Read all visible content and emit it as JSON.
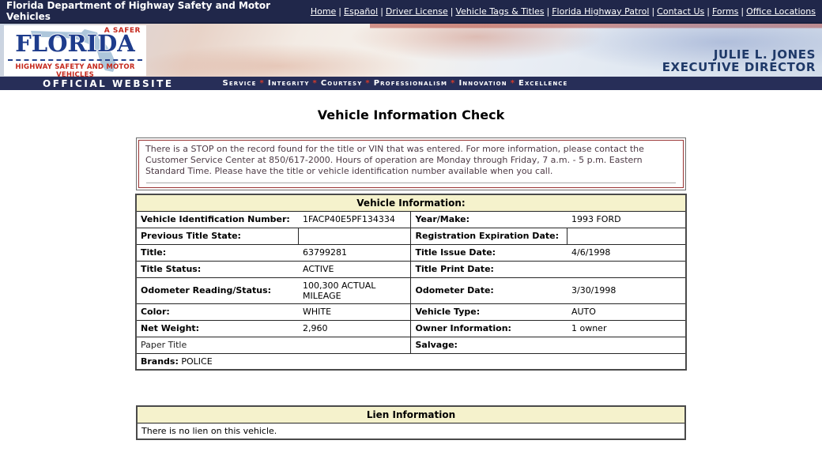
{
  "top_bar": {
    "title": "Florida Department of Highway Safety and Motor Vehicles",
    "links": [
      "Home",
      "Español",
      "Driver License",
      "Vehicle Tags & Titles",
      "Florida Highway Patrol",
      "Contact Us",
      "Forms",
      "Office Locations"
    ],
    "separator": "|"
  },
  "banner": {
    "logo": {
      "tagline": "A SAFER",
      "name": "FLORIDA",
      "subtitle": "HIGHWAY SAFETY AND MOTOR VEHICLES"
    },
    "director_name": "JULIE L. JONES",
    "director_title": "EXECUTIVE DIRECTOR",
    "official_website": "OFFICIAL WEBSITE",
    "motto_words": [
      "Service",
      "Integrity",
      "Courtesy",
      "Professionalism",
      "Innovation",
      "Excellence"
    ],
    "motto_separator": "*"
  },
  "page": {
    "title": "Vehicle Information Check"
  },
  "stop_notice": {
    "text": "There is a STOP on the record found for the title or VIN that was entered. For more information, please contact the Customer Service Center at 850/617-2000. Hours of operation are Monday through Friday, 7 a.m. - 5 p.m. Eastern Standard Time. Please have the title or vehicle identification number available when you call."
  },
  "vehicle_info": {
    "header": "Vehicle Information:",
    "rows": [
      {
        "ll": "Vehicle Identification Number:",
        "lv": "1FACP40E5PF134334",
        "rl": "Year/Make:",
        "rv": "1993 FORD"
      },
      {
        "ll": "Previous Title State:",
        "lv": "",
        "rl": "Registration Expiration Date:",
        "rv": ""
      },
      {
        "ll": "Title:",
        "lv": "63799281",
        "rl": "Title Issue Date:",
        "rv": "4/6/1998"
      },
      {
        "ll": "Title Status:",
        "lv": "ACTIVE",
        "rl": "Title Print Date:",
        "rv": ""
      },
      {
        "ll": "Odometer Reading/Status:",
        "lv": "100,300 ACTUAL MILEAGE",
        "rl": "Odometer Date:",
        "rv": "3/30/1998"
      },
      {
        "ll": "Color:",
        "lv": "WHITE",
        "rl": "Vehicle Type:",
        "rv": "AUTO"
      },
      {
        "ll": "Net Weight:",
        "lv": "2,960",
        "rl": "Owner Information:",
        "rv": "1 owner"
      }
    ],
    "paper_title": "Paper Title",
    "salvage_label": "Salvage:",
    "brands_label": "Brands:",
    "brands_value": "POLICE"
  },
  "lien_info": {
    "header": "Lien Information",
    "message": "There is no lien on this vehicle."
  },
  "colors": {
    "navy_bar": "#20274A",
    "motto_bar": "#272E58",
    "header_yellow": "#F5F2CC",
    "alert_border": "#993333",
    "logo_red": "#C5281C",
    "logo_navy": "#1E3C8C"
  }
}
